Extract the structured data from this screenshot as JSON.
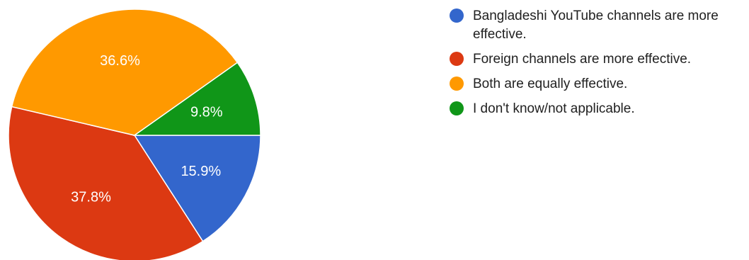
{
  "chart_data": {
    "type": "pie",
    "slices": [
      {
        "name": "Bangladeshi YouTube channels are more effective.",
        "value": 15.9,
        "label": "15.9%",
        "color": "#3366cc"
      },
      {
        "name": "Foreign channels are more effective.",
        "value": 37.8,
        "label": "37.8%",
        "color": "#dc3912"
      },
      {
        "name": "Both are equally effective.",
        "value": 36.6,
        "label": "36.6%",
        "color": "#ff9900"
      },
      {
        "name": "I don't know/not applicable.",
        "value": 9.8,
        "label": "9.8%",
        "color": "#109618"
      }
    ],
    "legend_position": "right"
  }
}
